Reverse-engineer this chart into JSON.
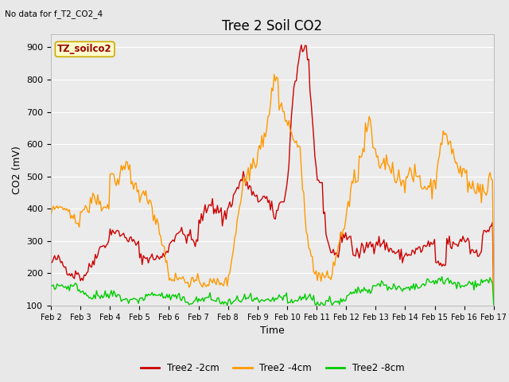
{
  "title": "Tree 2 Soil CO2",
  "subtitle": "No data for f_T2_CO2_4",
  "ylabel": "CO2 (mV)",
  "xlabel": "Time",
  "legend_label": "TZ_soilco2",
  "ylim": [
    100,
    940
  ],
  "yticks": [
    100,
    200,
    300,
    400,
    500,
    600,
    700,
    800,
    900
  ],
  "xtick_labels": [
    "Feb 2",
    "Feb 3",
    "Feb 4",
    "Feb 5",
    "Feb 6",
    "Feb 7",
    "Feb 8",
    "Feb 9",
    "Feb 10",
    "Feb 11",
    "Feb 12",
    "Feb 13",
    "Feb 14",
    "Feb 15",
    "Feb 16",
    "Feb 17"
  ],
  "series_colors": [
    "#cc0000",
    "#ff9900",
    "#00cc00"
  ],
  "series_labels": [
    "Tree2 -2cm",
    "Tree2 -4cm",
    "Tree2 -8cm"
  ],
  "background_color": "#e8e8e8",
  "plot_bg_color": "#ebebeb",
  "grid_color": "#ffffff",
  "title_fontsize": 12,
  "axis_fontsize": 9,
  "tick_fontsize": 8,
  "legend_box_color": "#ffffcc",
  "legend_text_color": "#990000",
  "legend_edge_color": "#ccaa00"
}
